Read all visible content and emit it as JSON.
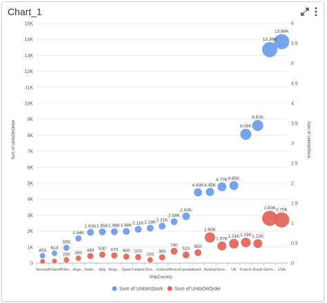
{
  "panel": {
    "title": "Chart_1"
  },
  "icons": {
    "expand": "expand-icon",
    "menu": "vertical-dots-icon"
  },
  "chart_data": {
    "type": "scatter",
    "x_title": "ShipCountry",
    "y_left_title": "Sum of UnitsOnOrder",
    "y_right_title": "Sum of UnitsInStock",
    "categories": [
      "Norway",
      "Poland",
      "Portu...",
      "Arge...",
      "Switz...",
      "Italy",
      "Belgi...",
      "Spain",
      "Finland",
      "Den...",
      "Ireland",
      "Mexico",
      "Canada",
      "Swed...",
      "Austria",
      "Vene...",
      "UK",
      "France",
      "Brazil",
      "Germ...",
      "USA"
    ],
    "y_left_ticks": [
      "0",
      "1K",
      "2K",
      "3K",
      "4K",
      "5K",
      "6K",
      "7K",
      "8K",
      "9K",
      "10K",
      "11K",
      "12K",
      "13K",
      "14K",
      "15K"
    ],
    "y_right_ticks": [
      "0",
      "0.5",
      "1",
      "1.5",
      "2",
      "2.5",
      "3",
      "3.5",
      "4",
      "4.5",
      "5",
      "5.5",
      "6"
    ],
    "y_left_range": [
      0,
      15000
    ],
    "y_right_range": [
      0,
      6
    ],
    "grid": true,
    "legend_position": "bottom",
    "series": [
      {
        "name": "Sum of UnitsInStock",
        "color": "#6a9bea",
        "values": [
          463,
          613,
          956,
          1540,
          1920,
          1950,
          1960,
          1980,
          2110,
          2180,
          2310,
          2590,
          2920,
          4430,
          4450,
          4770,
          4850,
          8060,
          8610,
          13360,
          13860
        ],
        "labels": [
          "463",
          "613",
          "956",
          "1.54K",
          "1.92K",
          "1.95K",
          "1.96K",
          "1.98K",
          "2.11K",
          "2.18K",
          "2.31K",
          "2.59K",
          "2.92K",
          "4.43K",
          "4.45K",
          "4.77K",
          "4.85K",
          "8.06K",
          "8.61K",
          "13.36K",
          "13.86K"
        ],
        "sizes": [
          4,
          4,
          4.5,
          4.5,
          5,
          5,
          5,
          5,
          5,
          5,
          5,
          5,
          5.5,
          6,
          6,
          6.5,
          6.5,
          8,
          8,
          11,
          11
        ]
      },
      {
        "name": "Sum of UnitsOnOrder",
        "color": "#e06456",
        "values": [
          110,
          130,
          200,
          300,
          440,
          530,
          470,
          400,
          370,
          200,
          360,
          740,
          510,
          650,
          1600,
          1070,
          1210,
          1290,
          1220,
          2800,
          2700
        ],
        "labels": [
          "",
          "",
          "200",
          "300",
          "440",
          "530",
          "470",
          "400",
          "370",
          "200",
          "360",
          "740",
          "510",
          "650",
          "1.60K",
          "1.07K",
          "1.21K",
          "1.29K",
          "1.22K",
          "2.80K",
          "2.70K"
        ],
        "sizes": [
          3.5,
          3.5,
          4,
          4,
          4.5,
          4.5,
          4.5,
          4.5,
          4.5,
          4,
          4.5,
          5,
          5,
          5,
          7.5,
          6.5,
          7,
          7,
          6.5,
          11,
          11
        ]
      }
    ]
  }
}
